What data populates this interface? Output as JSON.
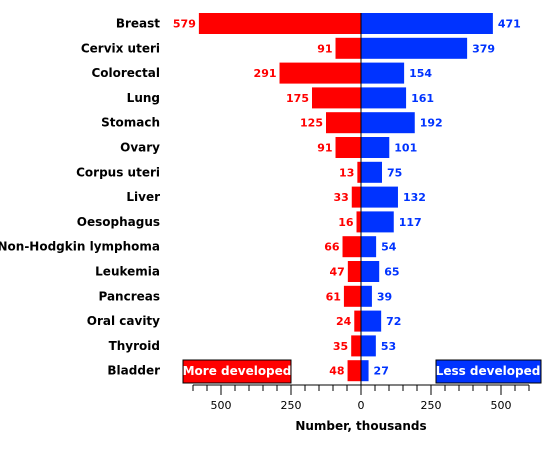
{
  "chart_data": {
    "type": "bar",
    "orientation": "horizontal-diverging",
    "categories": [
      "Breast",
      "Cervix uteri",
      "Colorectal",
      "Lung",
      "Stomach",
      "Ovary",
      "Corpus uteri",
      "Liver",
      "Oesophagus",
      "Non-Hodgkin lymphoma",
      "Leukemia",
      "Pancreas",
      "Oral cavity",
      "Thyroid",
      "Bladder"
    ],
    "series": [
      {
        "name": "More developed",
        "color": "#ff0000",
        "values": [
          579,
          91,
          291,
          175,
          125,
          91,
          13,
          33,
          16,
          66,
          47,
          61,
          24,
          35,
          48
        ]
      },
      {
        "name": "Less developed",
        "color": "#0033ff",
        "values": [
          471,
          379,
          154,
          161,
          192,
          101,
          75,
          132,
          117,
          54,
          65,
          39,
          72,
          53,
          27
        ]
      }
    ],
    "xlabel": "Number, thousands",
    "xticks": [
      "500",
      "250",
      "0",
      "250",
      "500"
    ],
    "xlim": [
      -600,
      600
    ],
    "label_colors": {
      "left": "#ff0000",
      "right": "#0033ff"
    }
  }
}
